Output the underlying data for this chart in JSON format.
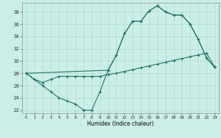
{
  "xlabel": "Humidex (Indice chaleur)",
  "bg_color": "#cceee8",
  "grid_color": "#aad8d0",
  "line_color": "#1a6e60",
  "line1_x": [
    0,
    1,
    2,
    3,
    4,
    5,
    6,
    7,
    8,
    9,
    10,
    11,
    12,
    13,
    14,
    15,
    16,
    17,
    18,
    19,
    20,
    21,
    22,
    23
  ],
  "line1_y": [
    28,
    27,
    26,
    25,
    24,
    23.5,
    23,
    22,
    22,
    25,
    28.5,
    31,
    34.5,
    36.5,
    36.5,
    38.2,
    39,
    38,
    37.5,
    37.5,
    36,
    33.5,
    30.5,
    29
  ],
  "line2_x": [
    0,
    1,
    2,
    3,
    4,
    5,
    6,
    7,
    8,
    9,
    10,
    11,
    12,
    13,
    14,
    15,
    16,
    17,
    18,
    19,
    20,
    21,
    22,
    23
  ],
  "line2_y": [
    28,
    27,
    26.5,
    27,
    27.5,
    27.5,
    27.5,
    27.5,
    27.5,
    27.5,
    27.8,
    28.0,
    28.3,
    28.6,
    28.9,
    29.2,
    29.5,
    29.8,
    30.1,
    30.4,
    30.7,
    31.0,
    31.3,
    29
  ],
  "line3_x": [
    0,
    10,
    11,
    12,
    13,
    14,
    15,
    16,
    17,
    18,
    19,
    20,
    21,
    22,
    23
  ],
  "line3_y": [
    28,
    28.5,
    31,
    34.5,
    36.5,
    36.5,
    38.2,
    39,
    38,
    37.5,
    37.5,
    36,
    33.5,
    30.5,
    29
  ],
  "xlim": [
    -0.5,
    23.5
  ],
  "ylim": [
    21.5,
    39.5
  ],
  "yticks": [
    22,
    24,
    26,
    28,
    30,
    32,
    34,
    36,
    38
  ],
  "xticks": [
    0,
    1,
    2,
    3,
    4,
    5,
    6,
    7,
    8,
    9,
    10,
    11,
    12,
    13,
    14,
    15,
    16,
    17,
    18,
    19,
    20,
    21,
    22,
    23
  ]
}
